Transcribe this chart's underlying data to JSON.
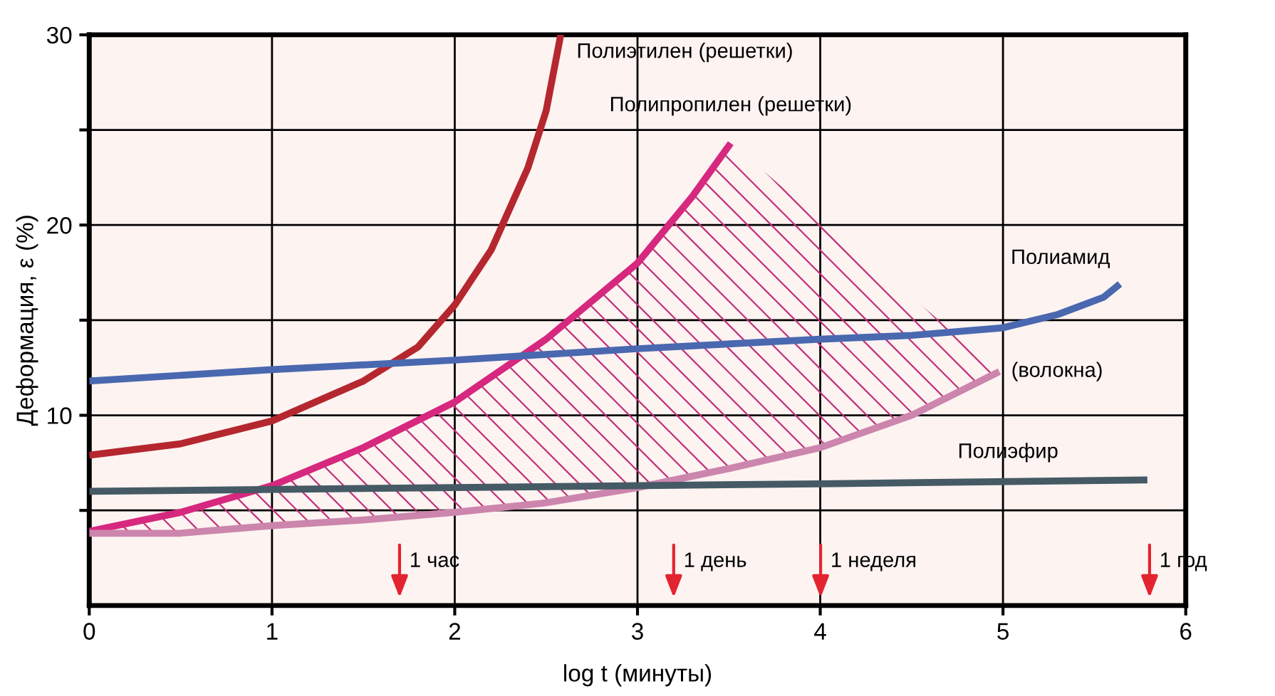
{
  "chart_data": {
    "type": "line",
    "xlabel": "log t (минуты)",
    "ylabel": "Деформация, ε (%)",
    "xlim": [
      0,
      6
    ],
    "xticks": [
      0,
      1,
      2,
      3,
      4,
      5,
      6
    ],
    "ylim": [
      0,
      30
    ],
    "yticks": [
      {
        "value": 5,
        "label": null
      },
      10,
      {
        "value": 15,
        "label": null
      },
      20,
      {
        "value": 25,
        "label": null
      },
      30
    ],
    "grid": true,
    "legend": false,
    "marker": "none",
    "line_style": "solid",
    "series": [
      {
        "name": "Полиэтилен (решетки)",
        "color": "#b5272f",
        "x": [
          0,
          0.5,
          1,
          1.5,
          1.8,
          2,
          2.2,
          2.4,
          2.5,
          2.58
        ],
        "values": [
          7.9,
          8.5,
          9.7,
          11.8,
          13.6,
          15.8,
          18.7,
          23,
          26,
          30
        ]
      },
      {
        "name": "Полипропилен (решетки)",
        "color": "#d6287f",
        "x": [
          0,
          0.5,
          1,
          1.5,
          2,
          2.5,
          3,
          3.3,
          3.51
        ],
        "values": [
          3.9,
          4.9,
          6.3,
          8.3,
          10.7,
          14,
          18,
          21.5,
          24.3
        ]
      },
      {
        "name": "(волокна)",
        "color": "#cc85ad",
        "x": [
          0,
          0.5,
          1,
          1.5,
          2,
          2.5,
          3,
          3.5,
          4,
          4.5,
          4.98
        ],
        "values": [
          3.8,
          3.8,
          4.2,
          4.5,
          4.9,
          5.4,
          6.2,
          7.2,
          8.3,
          10,
          12.3
        ]
      },
      {
        "name": "Полиамид",
        "color": "#4a68b0",
        "x": [
          0,
          1,
          2,
          3,
          4,
          4.5,
          5,
          5.3,
          5.55,
          5.64
        ],
        "values": [
          11.8,
          12.4,
          12.9,
          13.5,
          14,
          14.2,
          14.6,
          15.3,
          16.2,
          16.9
        ]
      },
      {
        "name": "Полиэфир",
        "color": "#455a64",
        "x": [
          0,
          2,
          4,
          5.79
        ],
        "values": [
          6.0,
          6.2,
          6.4,
          6.6
        ]
      }
    ],
    "annotations": [
      "1 час",
      "1 день",
      "1 неделя",
      "1 год"
    ]
  }
}
